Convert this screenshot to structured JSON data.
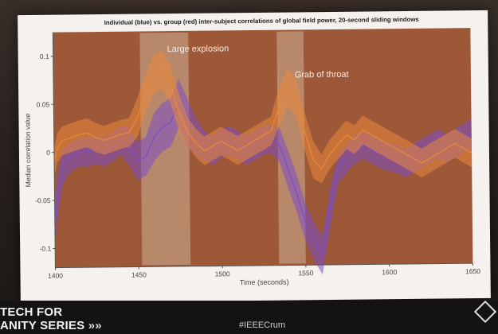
{
  "chart_data": {
    "type": "line",
    "title": "Individual (blue) vs. group (red) inter-subject correlations of global field power, 20-second sliding windows",
    "xlabel": "Time (seconds)",
    "ylabel": "Median correlation value",
    "xlim": [
      1400,
      1650
    ],
    "ylim": [
      -0.12,
      0.125
    ],
    "x_ticks": [
      "1400",
      "1450",
      "1500",
      "1550",
      "1600",
      "1650"
    ],
    "y_ticks": [
      "0.1",
      "0.05",
      "0",
      "-0.05",
      "-0.1"
    ],
    "grid": false,
    "series": [
      {
        "color": "#7b4fc8",
        "x": [
          1400,
          1402,
          1405,
          1410,
          1415,
          1420,
          1425,
          1430,
          1435,
          1440,
          1445,
          1450,
          1455,
          1460,
          1465,
          1470,
          1475,
          1480,
          1485,
          1490,
          1495,
          1500,
          1505,
          1510,
          1515,
          1520,
          1525,
          1530,
          1535,
          1540,
          1545,
          1550,
          1555,
          1560,
          1565,
          1570,
          1575,
          1580,
          1585,
          1590,
          1595,
          1600,
          1605,
          1610,
          1615,
          1620,
          1625,
          1630,
          1635,
          1640,
          1645,
          1650
        ],
        "values": [
          -0.075,
          -0.045,
          -0.015,
          -0.005,
          0.0,
          0.0,
          0.002,
          0.0,
          0.005,
          0.012,
          0.005,
          -0.01,
          -0.005,
          0.015,
          0.025,
          0.03,
          0.05,
          0.03,
          0.015,
          0.005,
          0.0,
          0.008,
          0.01,
          0.005,
          0.0,
          0.005,
          0.01,
          0.012,
          0.005,
          -0.02,
          -0.045,
          -0.075,
          -0.095,
          -0.11,
          -0.06,
          -0.02,
          -0.01,
          0.0,
          0.005,
          0.0,
          -0.005,
          -0.008,
          -0.01,
          -0.015,
          -0.01,
          -0.005,
          0.0,
          0.005,
          0.0,
          0.005,
          0.01,
          0.015
        ],
        "band": [
          0.02,
          0.02,
          0.018,
          0.015,
          0.015,
          0.015,
          0.015,
          0.015,
          0.015,
          0.015,
          0.02,
          0.02,
          0.02,
          0.025,
          0.025,
          0.025,
          0.025,
          0.025,
          0.02,
          0.015,
          0.015,
          0.015,
          0.015,
          0.015,
          0.015,
          0.015,
          0.015,
          0.015,
          0.018,
          0.02,
          0.02,
          0.02,
          0.02,
          0.02,
          0.02,
          0.015,
          0.015,
          0.015,
          0.015,
          0.015,
          0.015,
          0.015,
          0.015,
          0.015,
          0.015,
          0.015,
          0.015,
          0.015,
          0.015,
          0.015,
          0.015,
          0.015
        ]
      },
      {
        "color": "#e8893a",
        "x": [
          1400,
          1402,
          1405,
          1410,
          1415,
          1420,
          1425,
          1430,
          1435,
          1440,
          1445,
          1450,
          1455,
          1460,
          1465,
          1470,
          1475,
          1480,
          1485,
          1490,
          1495,
          1500,
          1505,
          1510,
          1515,
          1520,
          1525,
          1530,
          1535,
          1540,
          1545,
          1550,
          1555,
          1560,
          1565,
          1570,
          1575,
          1580,
          1585,
          1590,
          1595,
          1600,
          1605,
          1610,
          1615,
          1620,
          1625,
          1630,
          1635,
          1640,
          1645,
          1650
        ],
        "values": [
          -0.01,
          0.005,
          0.012,
          0.015,
          0.018,
          0.02,
          0.015,
          0.012,
          0.015,
          0.018,
          0.02,
          0.035,
          0.06,
          0.08,
          0.085,
          0.07,
          0.04,
          0.02,
          0.008,
          0.0,
          0.005,
          0.01,
          0.005,
          0.0,
          0.005,
          0.01,
          0.015,
          0.02,
          0.045,
          0.065,
          0.055,
          0.02,
          -0.01,
          -0.02,
          -0.005,
          0.005,
          0.015,
          0.01,
          0.02,
          0.015,
          0.01,
          0.005,
          0.0,
          -0.005,
          -0.01,
          -0.015,
          -0.01,
          -0.005,
          0.0,
          0.005,
          0.0,
          -0.005
        ],
        "band": [
          0.015,
          0.015,
          0.015,
          0.015,
          0.015,
          0.015,
          0.015,
          0.015,
          0.015,
          0.015,
          0.015,
          0.02,
          0.02,
          0.02,
          0.02,
          0.02,
          0.02,
          0.015,
          0.015,
          0.015,
          0.015,
          0.015,
          0.015,
          0.015,
          0.015,
          0.015,
          0.015,
          0.015,
          0.02,
          0.02,
          0.02,
          0.02,
          0.02,
          0.015,
          0.015,
          0.015,
          0.015,
          0.015,
          0.015,
          0.015,
          0.015,
          0.015,
          0.015,
          0.015,
          0.015,
          0.015,
          0.015,
          0.015,
          0.015,
          0.015,
          0.015,
          0.015
        ]
      }
    ],
    "highlights": [
      {
        "x_start": 1452,
        "x_end": 1481,
        "label": "Large explosion"
      },
      {
        "x_start": 1534,
        "x_end": 1550,
        "label": "Grab of throat"
      }
    ]
  },
  "footer": {
    "brand_line1": "TECH FOR",
    "brand_line2": "ANITY SERIES",
    "brand_arrows": "»»",
    "hashtag": "#IEEECrum"
  },
  "colors": {
    "plot_background": "#9d5838",
    "highlight_band": "#d9c4a8"
  }
}
